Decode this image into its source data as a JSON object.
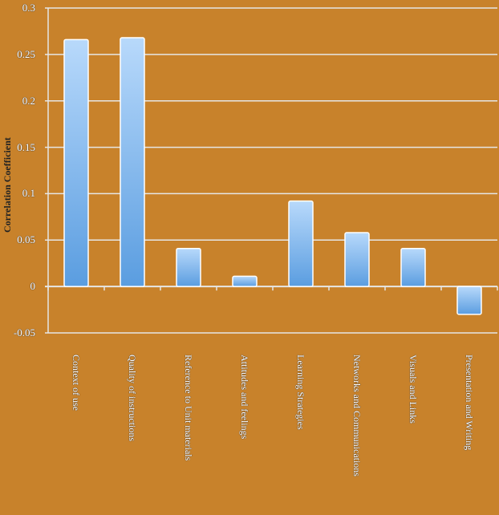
{
  "chart_data": {
    "type": "bar",
    "title": "",
    "xlabel": "",
    "ylabel": "Correlation Coefficient",
    "ylim": [
      -0.05,
      0.3
    ],
    "yticks": [
      "0.3",
      "0.25",
      "0.2",
      "0.15",
      "0.1",
      "0.05",
      "0",
      "-0.05"
    ],
    "grid": true,
    "legend": null,
    "categories": [
      "Context of use",
      "Quality of instructions",
      "Reference to Unit materials",
      "Attitudes and feelings",
      "Learning Strategies",
      "Networks and Communications",
      "Visuals and Links",
      "Presentation and Writing"
    ],
    "values": [
      0.266,
      0.268,
      0.041,
      0.011,
      0.092,
      0.058,
      0.041,
      -0.03
    ],
    "colors": {
      "background": "#c8822b",
      "bar_top": "#b8d9fb",
      "bar_bottom": "#5a9de0",
      "grid": "#e6e6e6"
    }
  }
}
